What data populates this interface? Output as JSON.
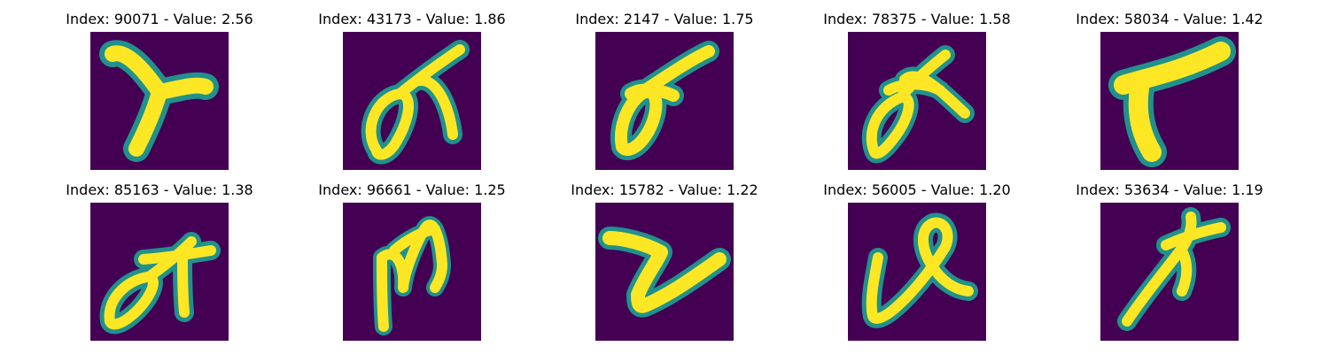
{
  "colors": {
    "background": "#440154",
    "halo": "#21918c",
    "stroke": "#fde725"
  },
  "panels": [
    {
      "title": "Index: 90071 - Value: 2.56",
      "glyph": "T-shaped handwritten character"
    },
    {
      "title": "Index: 43173 - Value: 1.86",
      "glyph": "loop with crossing stroke"
    },
    {
      "title": "Index: 2147 - Value: 1.75",
      "glyph": "slanted loop with long diagonal"
    },
    {
      "title": "Index: 78375 - Value: 1.58",
      "glyph": "loop with crossing stroke"
    },
    {
      "title": "Index: 58034 - Value: 1.42",
      "glyph": "T-shaped character"
    },
    {
      "title": "Index: 85163 - Value: 1.38",
      "glyph": "loop with crossing stroke"
    },
    {
      "title": "Index: 96661 - Value: 1.25",
      "glyph": "m-like strokes"
    },
    {
      "title": "Index: 15782 - Value: 1.22",
      "glyph": "z-like zigzag"
    },
    {
      "title": "Index: 56005 - Value: 1.20",
      "glyph": "looped ribbon shape"
    },
    {
      "title": "Index: 53634 - Value: 1.19",
      "glyph": "crossed diagonal strokes"
    }
  ]
}
